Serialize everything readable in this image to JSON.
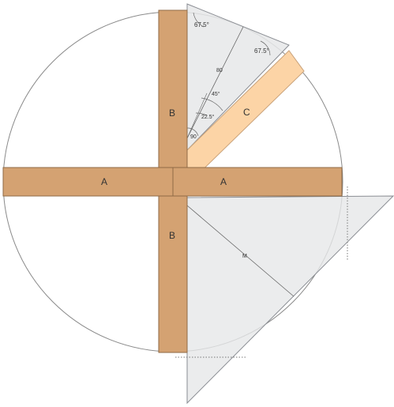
{
  "diagram": {
    "labels": {
      "board_a_left": "A",
      "board_a_right": "A",
      "board_b_top": "B",
      "board_b_bottom": "B",
      "board_c": "C"
    },
    "angles": {
      "top_left": "67.5°",
      "top_right": "67.5°",
      "mid": "45°",
      "small": "22.5°",
      "bottom": "90"
    },
    "dimensions": {
      "upper_square": "80",
      "lower_square": "M"
    },
    "colors": {
      "board_a_b": "#d4a272",
      "board_c": "#fcd4a6",
      "board_stroke": "#8f6a45",
      "square_fill": "#e6e7e9",
      "square_stroke": "#8a8d93",
      "circle_stroke": "#8a8a8a"
    }
  }
}
